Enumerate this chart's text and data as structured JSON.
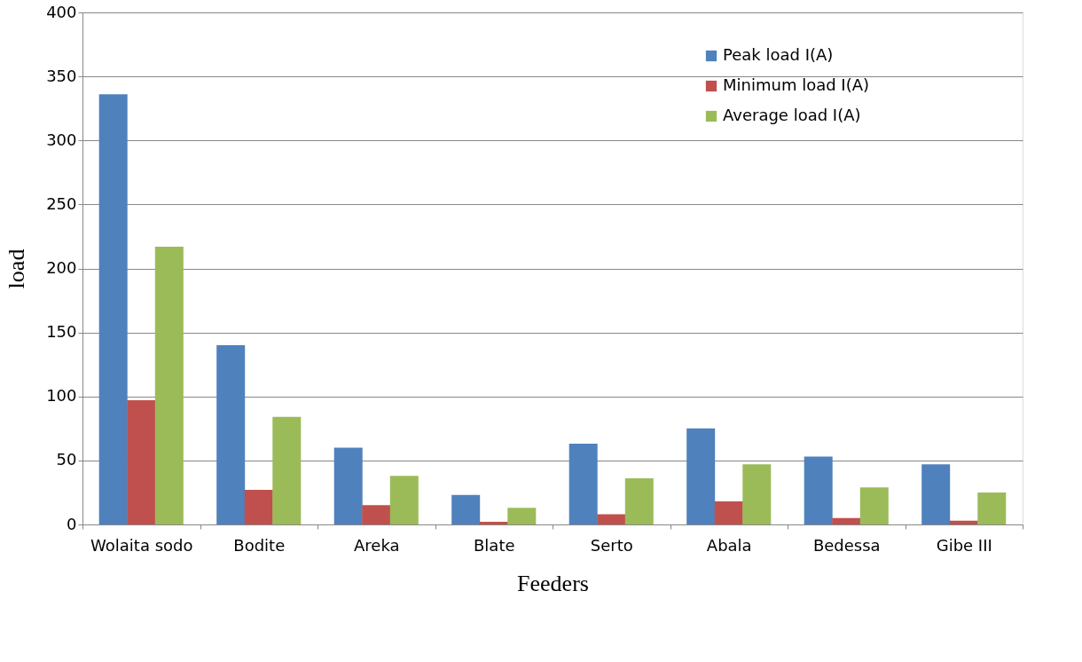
{
  "chart_data": {
    "type": "bar",
    "xlabel": "Feeders",
    "ylabel": "load",
    "categories": [
      "Wolaita sodo",
      "Bodite",
      "Areka",
      "Blate",
      "Serto",
      "Abala",
      "Bedessa",
      "Gibe III"
    ],
    "series": [
      {
        "name": "Peak load I(A)",
        "color": "#4f81bd",
        "values": [
          336,
          140,
          60,
          23,
          63,
          75,
          53,
          47
        ]
      },
      {
        "name": "Minimum load I(A)",
        "color": "#c0504d",
        "values": [
          97,
          27,
          15,
          2,
          8,
          18,
          5,
          3
        ]
      },
      {
        "name": "Average load I(A)",
        "color": "#9bbb59",
        "values": [
          217,
          84,
          38,
          13,
          36,
          47,
          29,
          25
        ]
      }
    ],
    "ylim": [
      0,
      400
    ],
    "yticks": [
      0,
      50,
      100,
      150,
      200,
      250,
      300,
      350,
      400
    ],
    "grid": "y",
    "legend": "top right"
  }
}
